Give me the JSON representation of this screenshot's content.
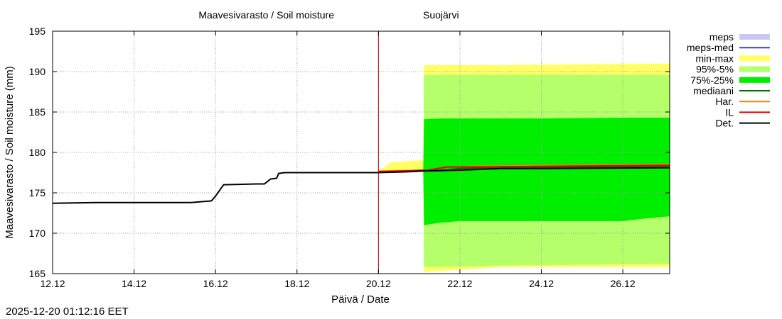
{
  "timestamp": "2025-12-20 01:12:16 EET",
  "colors": {
    "meps": "#c8c8f8",
    "meps_med": "#4040c0",
    "minmax": "#ffff66",
    "p95_5": "#b4ff6a",
    "p75_25": "#00ee00",
    "mediaani": "#007000",
    "har": "#ff8000",
    "il": "#e00000",
    "det": "#000000",
    "now_line": "#c00000",
    "grid": "#a0a0a0"
  },
  "chart_data": {
    "type": "line",
    "title": "Maavesivarasto / Soil moisture",
    "station": "Suojärvi",
    "xlabel": "Päivä / Date",
    "ylabel": "Maavesivarasto / Soil moisture (mm)",
    "ylim": [
      165,
      195
    ],
    "xlim_days": [
      0,
      15.15
    ],
    "forecast_start_day": 8.0,
    "yticks": [
      165,
      170,
      175,
      180,
      185,
      190,
      195
    ],
    "xticks": [
      {
        "day": 0,
        "label": "12.12"
      },
      {
        "day": 2,
        "label": "14.12"
      },
      {
        "day": 4,
        "label": "16.12"
      },
      {
        "day": 6,
        "label": "18.12"
      },
      {
        "day": 8,
        "label": "20.12"
      },
      {
        "day": 10,
        "label": "22.12"
      },
      {
        "day": 12,
        "label": "24.12"
      },
      {
        "day": 14,
        "label": "26.12"
      }
    ],
    "grid": true,
    "legend": [
      {
        "key": "meps",
        "label": "meps",
        "style": "band"
      },
      {
        "key": "meps_med",
        "label": "meps-med",
        "style": "line"
      },
      {
        "key": "minmax",
        "label": "min-max",
        "style": "band"
      },
      {
        "key": "p95_5",
        "label": "95%-5%",
        "style": "band"
      },
      {
        "key": "p75_25",
        "label": "75%-25%",
        "style": "band"
      },
      {
        "key": "mediaani",
        "label": "mediaani",
        "style": "line"
      },
      {
        "key": "har",
        "label": "Har.",
        "style": "line"
      },
      {
        "key": "il",
        "label": "IL",
        "style": "line"
      },
      {
        "key": "det",
        "label": "Det.",
        "style": "line"
      }
    ],
    "series": [
      {
        "name": "Det. observed",
        "x": [
          0,
          1.1,
          3.4,
          3.9,
          4.0,
          4.2,
          5.0,
          5.2,
          5.35,
          5.5,
          5.55,
          5.7,
          8.0
        ],
        "y": [
          173.7,
          173.8,
          173.8,
          174.0,
          174.6,
          176.0,
          176.1,
          176.1,
          176.7,
          176.8,
          177.4,
          177.5,
          177.5
        ]
      },
      {
        "name": "min-max",
        "x": [
          8.0,
          8.3,
          9.0,
          9.1,
          9.12,
          11,
          13,
          15.15
        ],
        "hi": [
          177.6,
          178.8,
          179.0,
          179.0,
          190.8,
          190.8,
          190.9,
          191.0
        ],
        "lo": [
          177.4,
          177.7,
          177.8,
          177.8,
          165.2,
          165.8,
          165.8,
          165.8
        ]
      },
      {
        "name": "95%-5%",
        "x": [
          8.0,
          9.1,
          9.12,
          11,
          13,
          15.15
        ],
        "hi": [
          177.5,
          178.0,
          189.6,
          189.6,
          189.6,
          189.6
        ],
        "lo": [
          177.5,
          177.7,
          165.8,
          166.0,
          166.1,
          166.2
        ]
      },
      {
        "name": "75%-25%",
        "x": [
          8.0,
          9.1,
          9.12,
          9.5,
          10,
          12,
          14,
          14.5,
          15.15
        ],
        "hi": [
          177.5,
          177.9,
          184.1,
          184.2,
          184.2,
          184.2,
          184.3,
          184.3,
          184.3
        ],
        "lo": [
          177.5,
          177.7,
          171.0,
          171.3,
          171.5,
          171.5,
          171.5,
          171.8,
          172.1
        ]
      },
      {
        "name": "mediaani",
        "x": [
          8.0,
          9.5,
          10,
          11.5,
          15.15
        ],
        "y": [
          177.6,
          177.8,
          178.0,
          178.1,
          178.3
        ]
      },
      {
        "name": "Har.",
        "x": [
          8.0,
          9.2,
          9.7,
          10.5,
          15.15
        ],
        "y": [
          177.7,
          177.8,
          178.2,
          178.3,
          178.5
        ]
      },
      {
        "name": "IL",
        "x": [
          8.0,
          9.2,
          9.7,
          10.5,
          15.15
        ],
        "y": [
          177.6,
          177.8,
          178.2,
          178.2,
          178.4
        ]
      },
      {
        "name": "Det. forecast",
        "x": [
          8.0,
          8.7,
          9.1,
          10.0,
          11.0,
          12.0,
          15.15
        ],
        "y": [
          177.5,
          177.6,
          177.7,
          177.8,
          178.0,
          178.0,
          178.1
        ]
      }
    ]
  }
}
